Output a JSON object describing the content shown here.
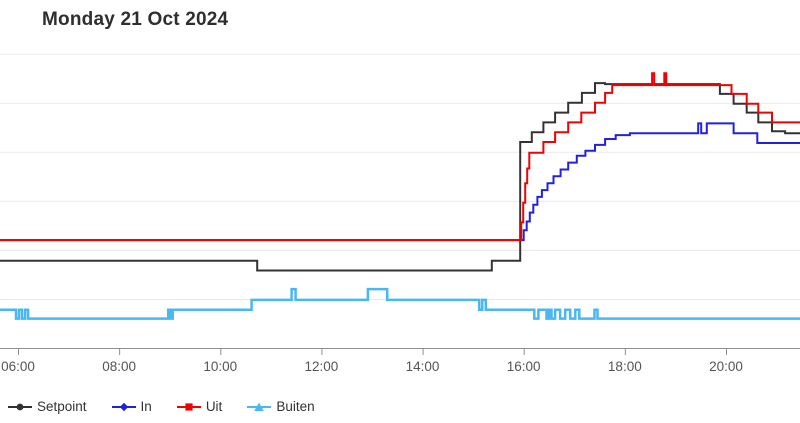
{
  "header": {
    "title": "Monday 21 Oct 2024"
  },
  "colors": {
    "background": "#ffffff",
    "title": "#2e2e2e",
    "grid": "#e9e9e9",
    "axis": "#8f8f8f",
    "tick_label": "#555555",
    "legend_label": "#333333",
    "setpoint": "#333333",
    "in": "#2222dd",
    "uit": "#ee0202",
    "buiten": "#49b7f2"
  },
  "legend": {
    "items": [
      {
        "label": "Setpoint",
        "marker": "circle",
        "color": "#333333"
      },
      {
        "label": "In",
        "marker": "diamond",
        "color": "#2222dd"
      },
      {
        "label": "Uit",
        "marker": "square",
        "color": "#ee0202"
      },
      {
        "label": "Buiten",
        "marker": "triangle",
        "color": "#49b7f2"
      }
    ]
  },
  "chart_data": {
    "type": "line",
    "title": "Monday 21 Oct 2024",
    "interpolation": "step-after",
    "x_unit": "time of day (decimal hours)",
    "x_range": [
      5.64,
      21.46
    ],
    "x_ticks": [
      {
        "t": 6,
        "label": "06:00"
      },
      {
        "t": 8,
        "label": "08:00"
      },
      {
        "t": 10,
        "label": "10:00"
      },
      {
        "t": 12,
        "label": "12:00"
      },
      {
        "t": 14,
        "label": "14:00"
      },
      {
        "t": 16,
        "label": "16:00"
      },
      {
        "t": 18,
        "label": "18:00"
      },
      {
        "t": 20,
        "label": "20:00"
      }
    ],
    "y_axis_labels_visible": false,
    "y_unit_assumed": "degrees C (axis labels cropped out of view)",
    "y_grid": {
      "start": 0,
      "end": 30,
      "step": 5
    },
    "legend_position": "bottom-left",
    "series": [
      {
        "name": "Setpoint",
        "color": "#333333",
        "marker": "circle",
        "points": [
          [
            5.64,
            8.9
          ],
          [
            10.73,
            7.9
          ],
          [
            15.37,
            8.9
          ],
          [
            15.93,
            21.0
          ],
          [
            16.16,
            22.0
          ],
          [
            16.39,
            23.0
          ],
          [
            16.62,
            24.0
          ],
          [
            16.88,
            25.0
          ],
          [
            17.15,
            26.0
          ],
          [
            17.41,
            27.0
          ],
          [
            17.61,
            26.9
          ],
          [
            19.88,
            25.9
          ],
          [
            20.15,
            24.9
          ],
          [
            20.41,
            24.0
          ],
          [
            20.64,
            23.0
          ],
          [
            20.91,
            22.1
          ],
          [
            21.17,
            21.9
          ]
        ]
      },
      {
        "name": "In",
        "color": "#2222dd",
        "marker": "diamond",
        "points": [
          [
            5.64,
            11.0
          ],
          [
            16.0,
            12.0
          ],
          [
            16.06,
            12.9
          ],
          [
            16.12,
            13.8
          ],
          [
            16.19,
            14.6
          ],
          [
            16.27,
            15.4
          ],
          [
            16.36,
            16.1
          ],
          [
            16.47,
            16.8
          ],
          [
            16.59,
            17.5
          ],
          [
            16.73,
            18.2
          ],
          [
            16.88,
            18.9
          ],
          [
            17.05,
            19.6
          ],
          [
            17.22,
            20.1
          ],
          [
            17.41,
            20.7
          ],
          [
            17.61,
            21.3
          ],
          [
            17.82,
            21.7
          ],
          [
            18.1,
            21.9
          ],
          [
            19.45,
            22.9
          ],
          [
            19.51,
            21.9
          ],
          [
            19.62,
            22.9
          ],
          [
            20.15,
            21.9
          ],
          [
            20.62,
            20.9
          ]
        ]
      },
      {
        "name": "Uit",
        "color": "#ee0202",
        "marker": "square",
        "points": [
          [
            5.64,
            11.0
          ],
          [
            15.95,
            12.8
          ],
          [
            15.99,
            14.8
          ],
          [
            16.03,
            16.8
          ],
          [
            16.07,
            18.3
          ],
          [
            16.11,
            19.9
          ],
          [
            16.39,
            21.0
          ],
          [
            16.62,
            22.0
          ],
          [
            16.88,
            23.0
          ],
          [
            17.14,
            24.0
          ],
          [
            17.41,
            25.0
          ],
          [
            17.61,
            26.0
          ],
          [
            17.75,
            26.8
          ],
          [
            18.54,
            28.0
          ],
          [
            18.58,
            26.8
          ],
          [
            18.78,
            28.0
          ],
          [
            18.82,
            26.8
          ],
          [
            20.11,
            25.9
          ],
          [
            20.41,
            24.9
          ],
          [
            20.64,
            24.0
          ],
          [
            20.91,
            23.0
          ]
        ]
      },
      {
        "name": "Buiten",
        "color": "#49b7f2",
        "marker": "triangle",
        "points": [
          [
            5.64,
            3.9
          ],
          [
            5.96,
            3.0
          ],
          [
            6.02,
            3.9
          ],
          [
            6.08,
            3.0
          ],
          [
            6.14,
            3.9
          ],
          [
            6.2,
            3.0
          ],
          [
            8.97,
            3.9
          ],
          [
            9.01,
            3.0
          ],
          [
            9.06,
            3.9
          ],
          [
            10.62,
            4.9
          ],
          [
            11.41,
            6.0
          ],
          [
            11.49,
            4.9
          ],
          [
            12.92,
            6.0
          ],
          [
            13.3,
            4.9
          ],
          [
            15.12,
            3.9
          ],
          [
            15.18,
            4.9
          ],
          [
            15.25,
            3.9
          ],
          [
            16.21,
            3.0
          ],
          [
            16.29,
            3.9
          ],
          [
            16.45,
            3.0
          ],
          [
            16.5,
            3.9
          ],
          [
            16.55,
            3.0
          ],
          [
            16.62,
            3.9
          ],
          [
            16.72,
            3.0
          ],
          [
            16.82,
            3.9
          ],
          [
            16.92,
            3.0
          ],
          [
            17.02,
            3.9
          ],
          [
            17.1,
            3.0
          ],
          [
            17.4,
            3.9
          ],
          [
            17.46,
            3.0
          ]
        ]
      }
    ]
  }
}
